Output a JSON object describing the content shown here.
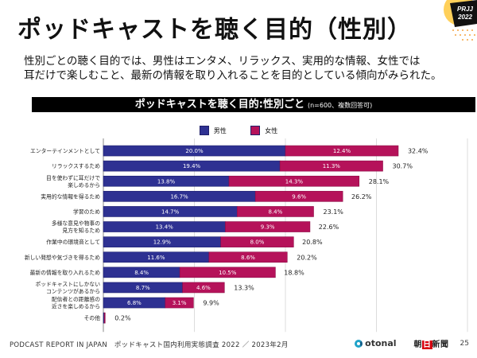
{
  "page": {
    "title": "ポッドキャストを聴く目的（性別）",
    "badge": {
      "line1": "PRJJ",
      "line2": "2022"
    },
    "summary_lines": [
      "性別ごとの聴く目的では、男性はエンタメ、リラックス、実用的な情報、女性では",
      "耳だけで楽しむこと、最新の情報を取り入れることを目的としている傾向がみられた。"
    ]
  },
  "footer": {
    "source": "PODCAST REPORT IN JAPAN　ポッドキャスト国内利用実態調査 2022 ／ 2023年2月",
    "brand1": "otonal",
    "brand2_pre": "朝",
    "brand2_red": "日",
    "brand2_post": "新聞",
    "page_number": "25"
  },
  "chart_data": {
    "type": "bar",
    "orientation": "horizontal",
    "stacked": true,
    "title": "ポッドキャストを聴く目的:性別ごと",
    "subtitle": "(n=600、複数回答可)",
    "xlabel": "",
    "ylabel": "",
    "xlim": [
      0,
      40
    ],
    "x_ticks": [
      "0%",
      "10%",
      "20%",
      "30%",
      "40%"
    ],
    "grid": true,
    "legend_position": "top-center",
    "colors": {
      "male": "#2e3192",
      "female": "#b5125a"
    },
    "categories": [
      "エンターテインメントとして",
      "リラックスするため",
      "目を使わずに耳だけで\n楽しめるから",
      "実用的な情報を得るため",
      "学習のため",
      "多様な意見や物事の\n見方を知るため",
      "作業中の環境音として",
      "新しい発想や気づきを得るため",
      "最新の情報を取り入れるため",
      "ポッドキャストにしかない\nコンテンツがあるから",
      "配信者との距離感の\n近さを楽しめるから",
      "その他"
    ],
    "series": [
      {
        "name": "男性",
        "values": [
          20.0,
          19.4,
          13.8,
          16.7,
          14.7,
          13.4,
          12.9,
          11.6,
          8.4,
          8.7,
          6.8,
          0.1
        ],
        "labels": [
          "20.0%",
          "19.4%",
          "13.8%",
          "16.7%",
          "14.7%",
          "13.4%",
          "12.9%",
          "11.6%",
          "8.4%",
          "8.7%",
          "6.8%",
          ""
        ]
      },
      {
        "name": "女性",
        "values": [
          12.4,
          11.3,
          14.3,
          9.6,
          8.4,
          9.3,
          8.0,
          8.6,
          10.5,
          4.6,
          3.1,
          0.1
        ],
        "labels": [
          "12.4%",
          "11.3%",
          "14.3%",
          "9.6%",
          "8.4%",
          "9.3%",
          "8.0%",
          "8.6%",
          "10.5%",
          "4.6%",
          "3.1%",
          ""
        ]
      }
    ],
    "totals": [
      32.4,
      30.7,
      28.1,
      26.2,
      23.1,
      22.6,
      20.8,
      20.2,
      18.8,
      13.3,
      9.9,
      0.2
    ],
    "total_labels": [
      "32.4%",
      "30.7%",
      "28.1%",
      "26.2%",
      "23.1%",
      "22.6%",
      "20.8%",
      "20.2%",
      "18.8%",
      "13.3%",
      "9.9%",
      "0.2%"
    ]
  }
}
